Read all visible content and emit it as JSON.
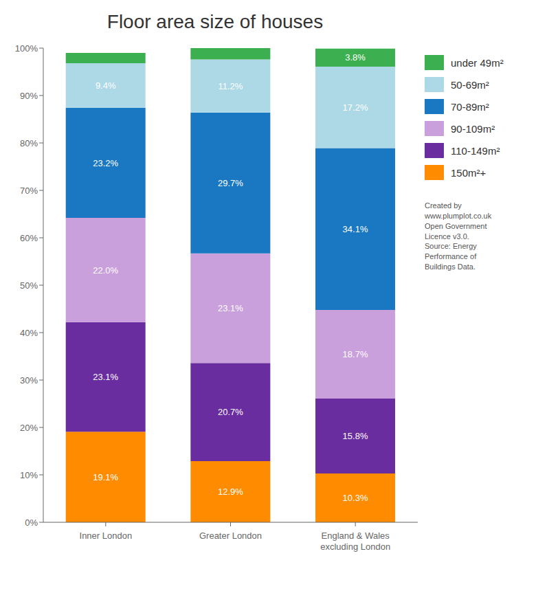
{
  "chart_data": {
    "type": "bar",
    "title": "Floor area size of houses",
    "stacked": true,
    "grid": false,
    "legend": "right",
    "data_labels": true,
    "categories": [
      "Inner London",
      "Greater London",
      "England & Wales\nexcluding London"
    ],
    "series": [
      {
        "name": "150m²+",
        "color": "#ff8c00",
        "values": [
          19.1,
          12.9,
          10.3
        ],
        "value_labels": [
          "19.1%",
          "12.9%",
          "10.3%"
        ]
      },
      {
        "name": "110-149m²",
        "color": "#6a2d9f",
        "values": [
          23.1,
          20.7,
          15.8
        ],
        "value_labels": [
          "23.1%",
          "20.7%",
          "15.8%"
        ]
      },
      {
        "name": "90-109m²",
        "color": "#c9a0dc",
        "values": [
          22.0,
          23.1,
          18.7
        ],
        "value_labels": [
          "22.0%",
          "23.1%",
          "18.7%"
        ]
      },
      {
        "name": "70-89m²",
        "color": "#1a78c2",
        "values": [
          23.2,
          29.7,
          34.1
        ],
        "value_labels": [
          "23.2%",
          "29.7%",
          "34.1%"
        ]
      },
      {
        "name": "50-69m²",
        "color": "#add8e6",
        "values": [
          9.4,
          11.2,
          17.2
        ],
        "value_labels": [
          "9.4%",
          "11.2%",
          "17.2%"
        ]
      },
      {
        "name": "under 49m²",
        "color": "#3cb050",
        "values": [
          2.2,
          2.4,
          3.8
        ],
        "value_labels": [
          null,
          null,
          "3.8%"
        ]
      }
    ],
    "ylim": [
      0,
      100
    ],
    "yticks": [
      {
        "value": 0,
        "label": "0%"
      },
      {
        "value": 10,
        "label": "10%"
      },
      {
        "value": 20,
        "label": "20%"
      },
      {
        "value": 30,
        "label": "30%"
      },
      {
        "value": 40,
        "label": "40%"
      },
      {
        "value": 50,
        "label": "50%"
      },
      {
        "value": 60,
        "label": "60%"
      },
      {
        "value": 70,
        "label": "70%"
      },
      {
        "value": 80,
        "label": "80%"
      },
      {
        "value": 90,
        "label": "90%"
      },
      {
        "value": 100,
        "label": "100%"
      }
    ],
    "annotations": [
      "Created by\nwww.plumplot.co.uk\nOpen Government\nLicence v3.0.\nSource: Energy\nPerformance of\nBuildings Data."
    ]
  }
}
